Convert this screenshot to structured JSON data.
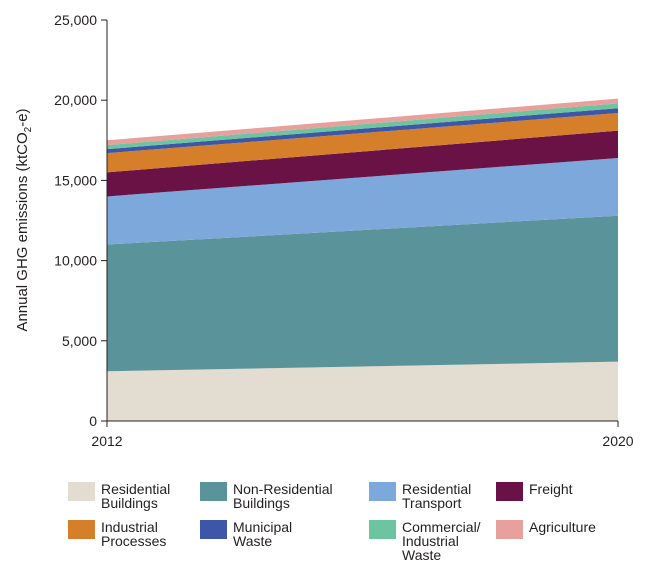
{
  "chart_data": {
    "type": "area",
    "stacked": true,
    "x": [
      "2012",
      "2020"
    ],
    "ylim": [
      0,
      25000
    ],
    "yticks": [
      "0",
      "5,000",
      "10,000",
      "15,000",
      "20,000",
      "25,000"
    ],
    "ytick_values": [
      0,
      5000,
      10000,
      15000,
      20000,
      25000
    ],
    "xticks": [
      "2012",
      "2020"
    ],
    "ylabel": {
      "main": "Annual GHG emissions (ktCO",
      "sub": "2",
      "end": "-e)"
    },
    "xlabel": "",
    "title": "",
    "grid": false,
    "legend_position": "bottom",
    "series": [
      {
        "name": "Residential Buildings",
        "label_lines": [
          "Residential",
          "Buildings"
        ],
        "color": "#e3dcd0",
        "values": [
          3100,
          3700
        ]
      },
      {
        "name": "Non-Residential Buildings",
        "label_lines": [
          "Non-Residential",
          "Buildings"
        ],
        "color": "#5b939b",
        "values": [
          7900,
          9100
        ]
      },
      {
        "name": "Residential Transport",
        "label_lines": [
          "Residential",
          "Transport"
        ],
        "color": "#7da8dc",
        "values": [
          3000,
          3600
        ]
      },
      {
        "name": "Freight",
        "label_lines": [
          "Freight"
        ],
        "color": "#6a1246",
        "values": [
          1500,
          1700
        ]
      },
      {
        "name": "Industrial Processes",
        "label_lines": [
          "Industrial",
          "Processes"
        ],
        "color": "#d67f2a",
        "values": [
          1200,
          1100
        ]
      },
      {
        "name": "Municipal Waste",
        "label_lines": [
          "Municipal",
          "Waste"
        ],
        "color": "#3d56a8",
        "values": [
          250,
          300
        ]
      },
      {
        "name": "Commercial/ Industrial Waste",
        "label_lines": [
          "Commercial/",
          "Industrial",
          "Waste"
        ],
        "color": "#6cc4a1",
        "values": [
          250,
          300
        ]
      },
      {
        "name": "Agriculture",
        "label_lines": [
          "Agriculture"
        ],
        "color": "#e8a09c",
        "values": [
          300,
          300
        ]
      }
    ]
  }
}
